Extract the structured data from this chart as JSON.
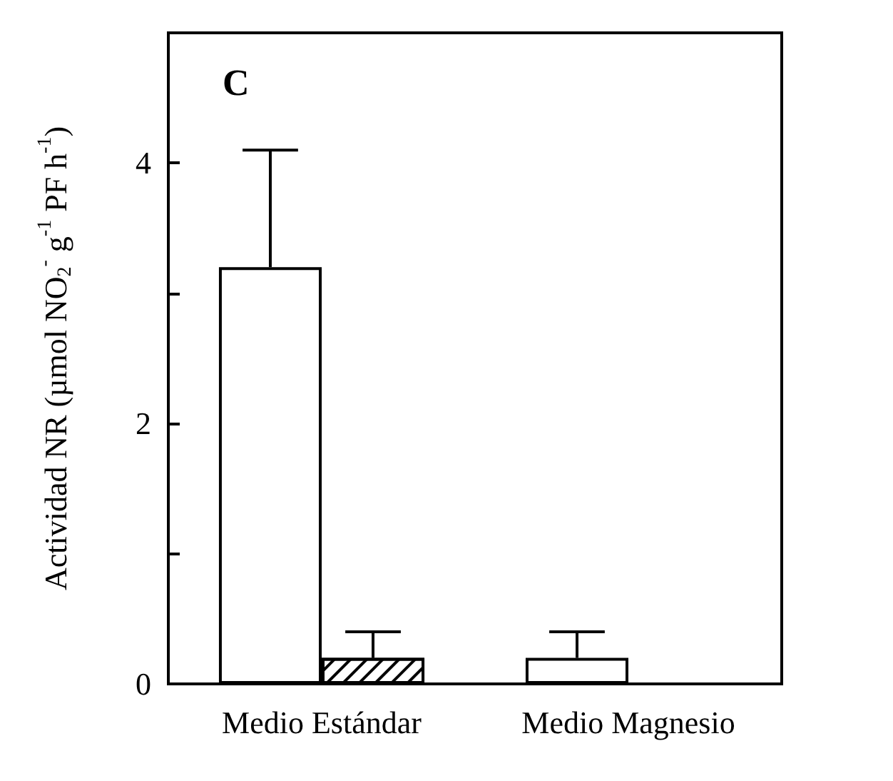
{
  "chart_data": {
    "type": "bar",
    "ylabel": "Actividad NR (µmol NO$_{2}$$^{-}$ g$^{-1}$ PF h$^{-1}$)",
    "annotations": [
      "C"
    ],
    "categories": [
      "Medio Estándar",
      "Medio Magnesio"
    ],
    "series": [
      {
        "color": "#ffffff",
        "values": [
          3.2,
          0.2
        ],
        "errors": [
          [
            3.2,
            4.1
          ],
          [
            0.2,
            0.4
          ]
        ]
      },
      {
        "color": "#ffffff",
        "values": [
          0.2,
          null
        ],
        "errors": [
          [
            0.2,
            0.4
          ],
          null
        ]
      }
    ],
    "ylim": [
      0,
      5
    ],
    "yticks": [
      0,
      {
        "value": 1,
        "label": null
      },
      2,
      {
        "value": 3,
        "label": null
      },
      4
    ],
    "grid": false
  }
}
